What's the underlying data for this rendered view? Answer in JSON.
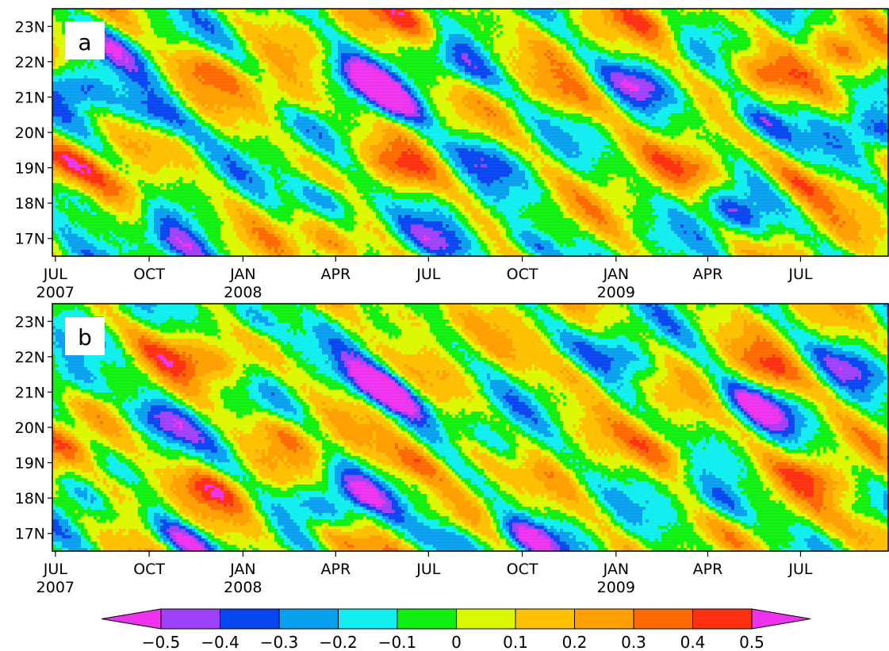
{
  "chart_data": [
    {
      "type": "heatmap",
      "panel_label": "a",
      "y_ticks": [
        "23N",
        "22N",
        "21N",
        "20N",
        "19N",
        "18N",
        "17N"
      ],
      "y_tick_values": [
        23,
        22,
        21,
        20,
        19,
        18,
        17
      ],
      "ylim": [
        16.5,
        23.5
      ],
      "x_ticks": [
        {
          "month": "JUL",
          "year": "2007"
        },
        {
          "month": "OCT",
          "year": ""
        },
        {
          "month": "JAN",
          "year": "2008"
        },
        {
          "month": "APR",
          "year": ""
        },
        {
          "month": "JUL",
          "year": ""
        },
        {
          "month": "OCT",
          "year": ""
        },
        {
          "month": "JAN",
          "year": "2009"
        },
        {
          "month": "APR",
          "year": ""
        },
        {
          "month": "JUL",
          "year": ""
        }
      ],
      "x_tick_dates": [
        "2007-07-01",
        "2007-10-01",
        "2008-01-01",
        "2008-04-01",
        "2008-07-01",
        "2008-10-01",
        "2009-01-01",
        "2009-04-01",
        "2009-07-01"
      ],
      "xlim": [
        "2007-06-28",
        "2009-09-25"
      ],
      "features": [
        {
          "date": "2007-07-10",
          "lat": 19.3,
          "value": 0.35
        },
        {
          "date": "2007-07-15",
          "lat": 18.2,
          "value": -0.3
        },
        {
          "date": "2007-07-20",
          "lat": 21.3,
          "value": -0.35
        },
        {
          "date": "2007-08-20",
          "lat": 22.5,
          "value": -0.3
        },
        {
          "date": "2007-09-10",
          "lat": 18.4,
          "value": 0.3
        },
        {
          "date": "2007-10-05",
          "lat": 20.5,
          "value": -0.4
        },
        {
          "date": "2007-11-01",
          "lat": 16.7,
          "value": -0.45
        },
        {
          "date": "2007-11-25",
          "lat": 21.8,
          "value": 0.25
        },
        {
          "date": "2008-02-15",
          "lat": 21.0,
          "value": 0.25
        },
        {
          "date": "2008-03-25",
          "lat": 18.1,
          "value": -0.45
        },
        {
          "date": "2008-04-01",
          "lat": 16.8,
          "value": 0.4
        },
        {
          "date": "2008-04-25",
          "lat": 21.6,
          "value": -0.4
        },
        {
          "date": "2008-05-25",
          "lat": 20.9,
          "value": -0.45
        },
        {
          "date": "2008-06-05",
          "lat": 19.0,
          "value": 0.3
        },
        {
          "date": "2008-06-15",
          "lat": 23.2,
          "value": 0.45
        },
        {
          "date": "2008-07-10",
          "lat": 16.9,
          "value": -0.3
        },
        {
          "date": "2008-08-05",
          "lat": 21.8,
          "value": -0.3
        },
        {
          "date": "2008-08-20",
          "lat": 19.3,
          "value": -0.25
        },
        {
          "date": "2008-10-10",
          "lat": 16.8,
          "value": -0.4
        },
        {
          "date": "2008-11-15",
          "lat": 21.0,
          "value": 0.25
        },
        {
          "date": "2009-01-20",
          "lat": 21.4,
          "value": -0.3
        },
        {
          "date": "2009-02-05",
          "lat": 23.1,
          "value": 0.25
        },
        {
          "date": "2009-03-20",
          "lat": 19.0,
          "value": 0.3
        },
        {
          "date": "2009-04-25",
          "lat": 17.7,
          "value": -0.35
        },
        {
          "date": "2009-05-20",
          "lat": 20.3,
          "value": -0.45
        },
        {
          "date": "2009-05-25",
          "lat": 21.7,
          "value": 0.35
        },
        {
          "date": "2009-07-01",
          "lat": 18.6,
          "value": 0.3
        },
        {
          "date": "2009-08-10",
          "lat": 22.3,
          "value": 0.3
        },
        {
          "date": "2009-09-10",
          "lat": 20.0,
          "value": -0.35
        }
      ]
    },
    {
      "type": "heatmap",
      "panel_label": "b",
      "y_ticks": [
        "23N",
        "22N",
        "21N",
        "20N",
        "19N",
        "18N",
        "17N"
      ],
      "y_tick_values": [
        23,
        22,
        21,
        20,
        19,
        18,
        17
      ],
      "ylim": [
        16.5,
        23.5
      ],
      "x_ticks": [
        {
          "month": "JUL",
          "year": "2007"
        },
        {
          "month": "OCT",
          "year": ""
        },
        {
          "month": "JAN",
          "year": "2008"
        },
        {
          "month": "APR",
          "year": ""
        },
        {
          "month": "JUL",
          "year": ""
        },
        {
          "month": "OCT",
          "year": ""
        },
        {
          "month": "JAN",
          "year": "2009"
        },
        {
          "month": "APR",
          "year": ""
        },
        {
          "month": "JUL",
          "year": ""
        }
      ],
      "x_tick_dates": [
        "2007-07-01",
        "2007-10-01",
        "2008-01-01",
        "2008-04-01",
        "2008-07-01",
        "2008-10-01",
        "2009-01-01",
        "2009-04-01",
        "2009-07-01"
      ],
      "xlim": [
        "2007-06-28",
        "2009-09-25"
      ],
      "features": [
        {
          "date": "2007-07-10",
          "lat": 19.5,
          "value": 0.35
        },
        {
          "date": "2007-07-20",
          "lat": 21.3,
          "value": -0.3
        },
        {
          "date": "2007-07-25",
          "lat": 18.2,
          "value": -0.25
        },
        {
          "date": "2007-09-05",
          "lat": 18.2,
          "value": 0.35
        },
        {
          "date": "2007-10-10",
          "lat": 20.2,
          "value": -0.35
        },
        {
          "date": "2007-10-25",
          "lat": 22.0,
          "value": 0.25
        },
        {
          "date": "2007-11-05",
          "lat": 16.8,
          "value": -0.45
        },
        {
          "date": "2007-11-30",
          "lat": 18.3,
          "value": 0.35
        },
        {
          "date": "2007-12-20",
          "lat": 21.8,
          "value": 0.25
        },
        {
          "date": "2008-01-05",
          "lat": 23.1,
          "value": -0.4
        },
        {
          "date": "2008-02-15",
          "lat": 19.8,
          "value": 0.25
        },
        {
          "date": "2008-03-10",
          "lat": 17.8,
          "value": -0.3
        },
        {
          "date": "2008-04-05",
          "lat": 16.8,
          "value": 0.35
        },
        {
          "date": "2008-04-20",
          "lat": 18.2,
          "value": -0.35
        },
        {
          "date": "2008-05-10",
          "lat": 21.3,
          "value": -0.45
        },
        {
          "date": "2008-06-01",
          "lat": 20.8,
          "value": -0.45
        },
        {
          "date": "2008-06-20",
          "lat": 19.0,
          "value": 0.35
        },
        {
          "date": "2008-06-15",
          "lat": 23.2,
          "value": 0.3
        },
        {
          "date": "2008-07-25",
          "lat": 16.8,
          "value": -0.35
        },
        {
          "date": "2008-08-15",
          "lat": 19.3,
          "value": 0.3
        },
        {
          "date": "2008-09-05",
          "lat": 19.5,
          "value": -0.25
        },
        {
          "date": "2008-10-05",
          "lat": 16.9,
          "value": -0.45
        },
        {
          "date": "2008-11-20",
          "lat": 21.5,
          "value": 0.2
        },
        {
          "date": "2009-01-10",
          "lat": 22.0,
          "value": -0.25
        },
        {
          "date": "2009-02-20",
          "lat": 19.3,
          "value": 0.3
        },
        {
          "date": "2009-04-15",
          "lat": 17.8,
          "value": -0.3
        },
        {
          "date": "2009-05-20",
          "lat": 20.6,
          "value": -0.45
        },
        {
          "date": "2009-06-05",
          "lat": 21.6,
          "value": 0.3
        },
        {
          "date": "2009-07-15",
          "lat": 18.6,
          "value": 0.3
        },
        {
          "date": "2009-08-20",
          "lat": 21.7,
          "value": -0.25
        },
        {
          "date": "2009-09-15",
          "lat": 17.0,
          "value": 0.3
        }
      ]
    }
  ],
  "colorbar": {
    "labels": [
      "−0.5",
      "−0.4",
      "−0.3",
      "−0.2",
      "−0.1",
      "0",
      "0.1",
      "0.2",
      "0.3",
      "0.4",
      "0.5"
    ],
    "levels": [
      -0.5,
      -0.4,
      -0.3,
      -0.2,
      -0.1,
      0,
      0.1,
      0.2,
      0.3,
      0.4,
      0.5
    ],
    "colors": [
      "#ee33ee",
      "#a040f8",
      "#0846f0",
      "#0aa0f0",
      "#10eef0",
      "#10f010",
      "#dcf800",
      "#ffc000",
      "#ffa000",
      "#ff6a00",
      "#ff3010",
      "#ee33ee"
    ]
  }
}
